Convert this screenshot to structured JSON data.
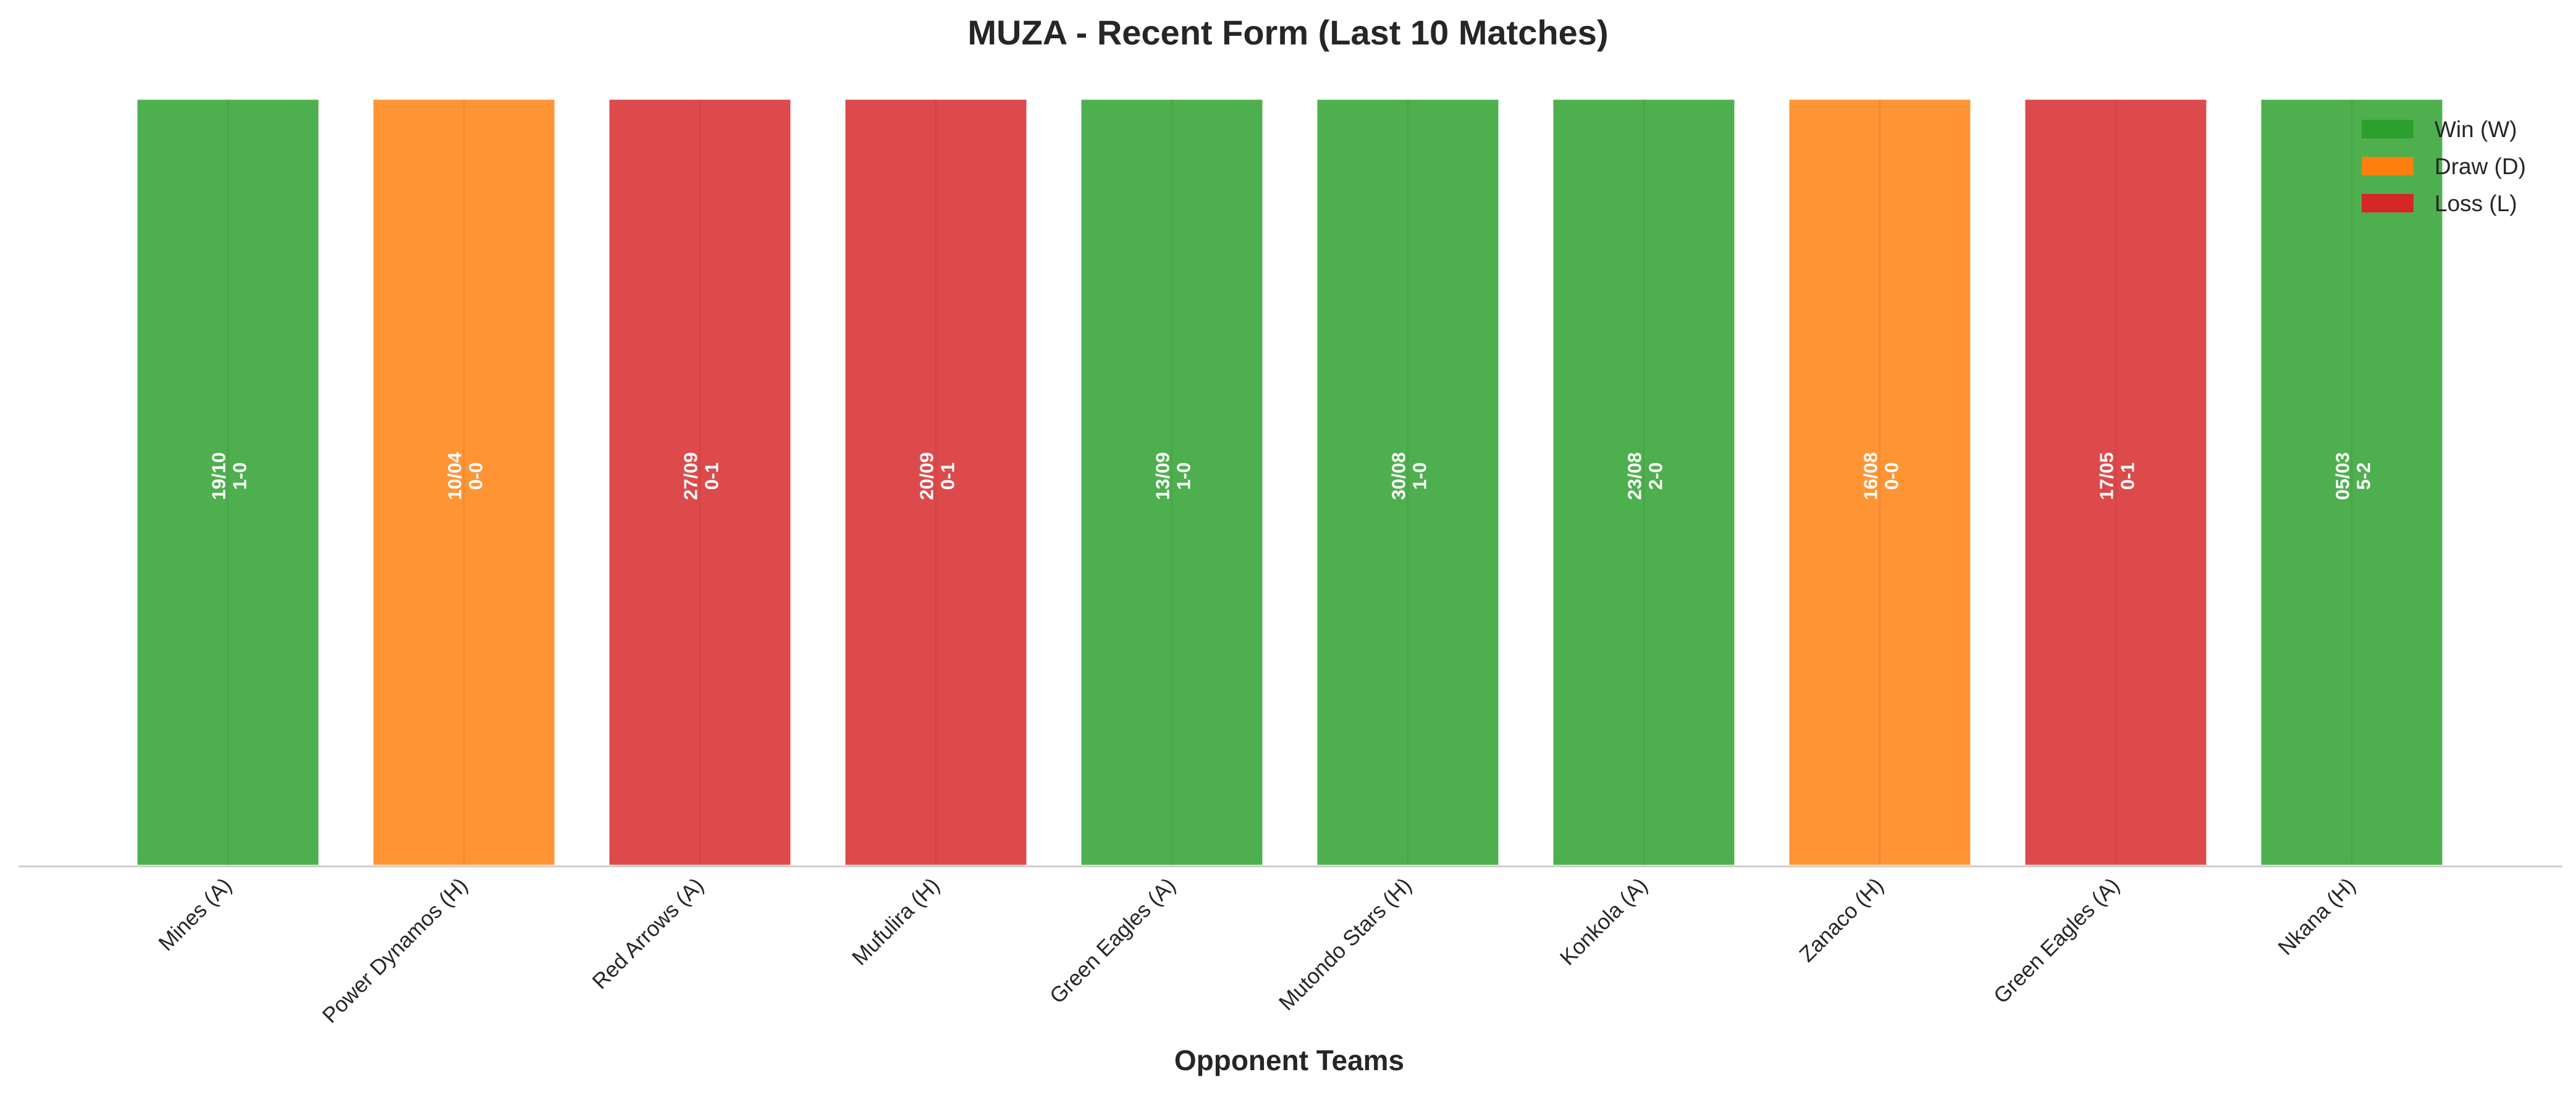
{
  "chart_data": {
    "type": "bar",
    "title": "MUZA - Recent Form (Last 10 Matches)",
    "xlabel": "Opponent Teams",
    "ylabel": "",
    "categories": [
      "Mines (A)",
      "Power Dynamos (H)",
      "Red Arrows (A)",
      "Mufulira (H)",
      "Green Eagles (A)",
      "Mutondo Stars (H)",
      "Konkola (A)",
      "Zanaco (H)",
      "Green Eagles (A)",
      "Nkana (H)"
    ],
    "values": [
      1,
      1,
      1,
      1,
      1,
      1,
      1,
      1,
      1,
      1
    ],
    "results": [
      "W",
      "D",
      "L",
      "L",
      "W",
      "W",
      "W",
      "D",
      "L",
      "W"
    ],
    "dates": [
      "19/10",
      "10/04",
      "27/09",
      "20/09",
      "13/09",
      "30/08",
      "23/08",
      "16/08",
      "17/05",
      "05/03"
    ],
    "scores": [
      "1-0",
      "0-0",
      "0-1",
      "0-1",
      "1-0",
      "1-0",
      "2-0",
      "0-0",
      "0-1",
      "5-2"
    ],
    "grid": false,
    "legend": {
      "placement": "top-right",
      "entries": [
        {
          "key": "W",
          "label": "Win (W)",
          "color": "#2ca02c"
        },
        {
          "key": "D",
          "label": "Draw (D)",
          "color": "#ff7f0e"
        },
        {
          "key": "L",
          "label": "Loss (L)",
          "color": "#d62728"
        }
      ]
    }
  }
}
